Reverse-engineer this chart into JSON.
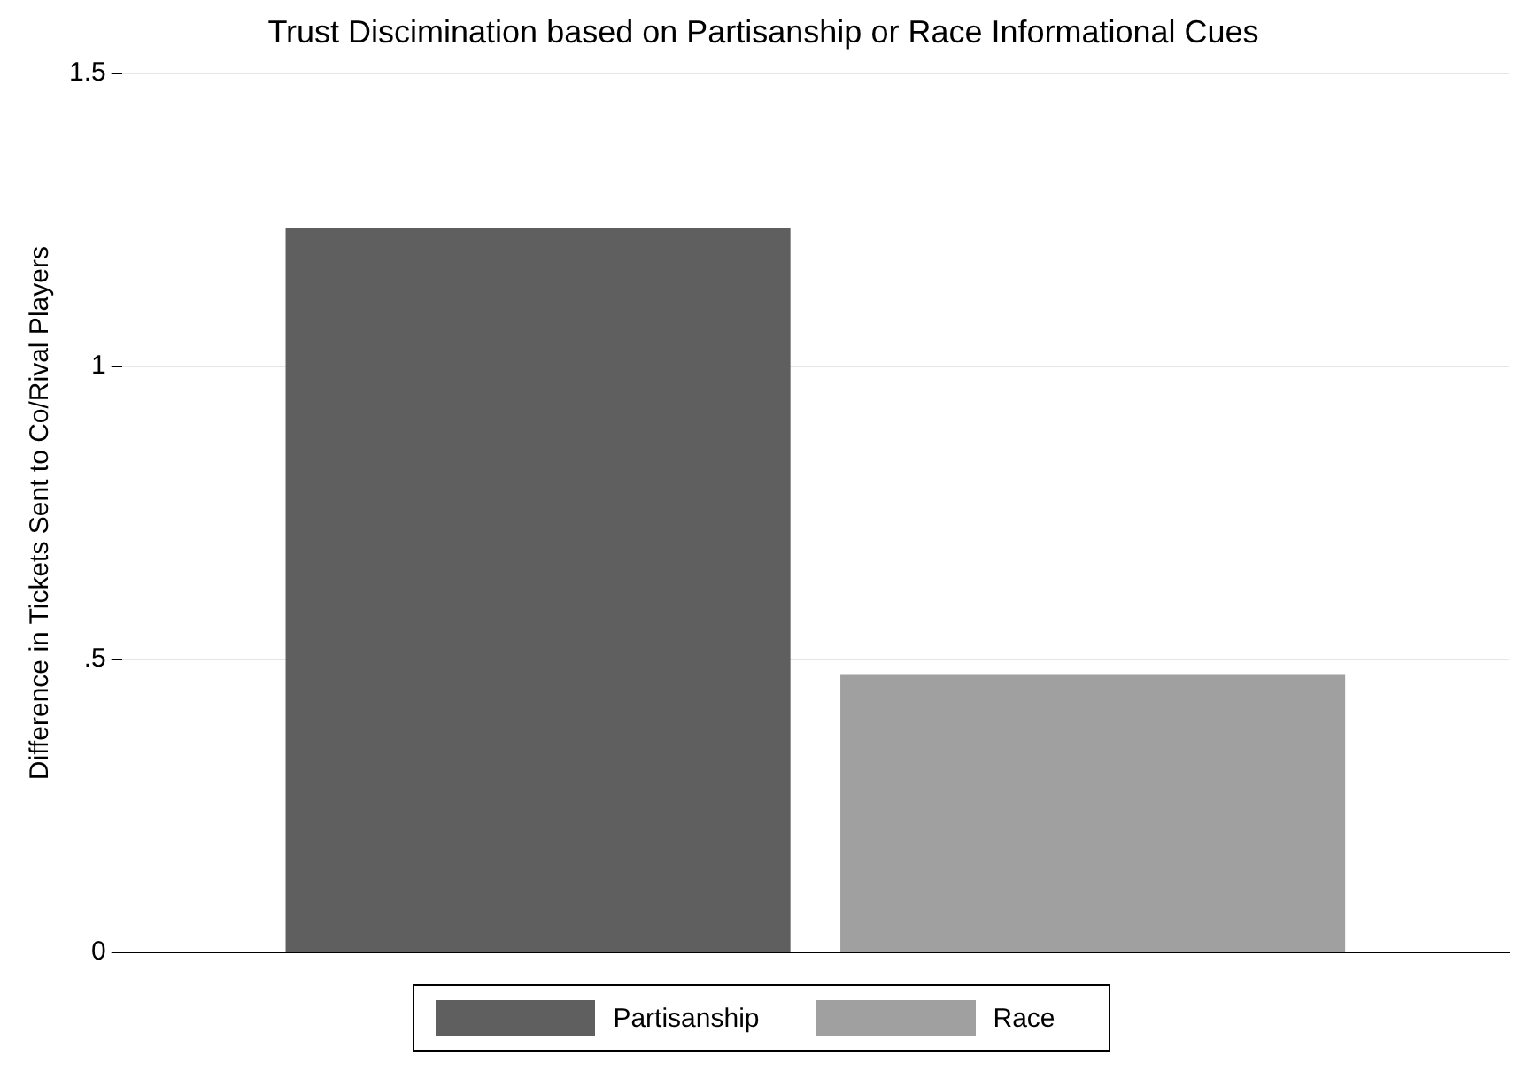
{
  "chart_data": {
    "type": "bar",
    "title": "Trust Discimination based on Partisanship or Race Informational Cues",
    "ylabel": "Difference in Tickets Sent to Co/Rival Players",
    "categories": [
      null
    ],
    "series": [
      {
        "name": "Partisanship",
        "color": "#5f5f5f",
        "values": [
          1.236
        ]
      },
      {
        "name": "Race",
        "color": "#a0a0a0",
        "values": [
          0.475
        ]
      }
    ],
    "ylim": [
      0,
      1.5
    ],
    "yticks": [
      0,
      {
        "value": 0.5,
        "label": ".5"
      },
      1,
      1.5
    ],
    "grid": "y",
    "legend": "bottom"
  }
}
